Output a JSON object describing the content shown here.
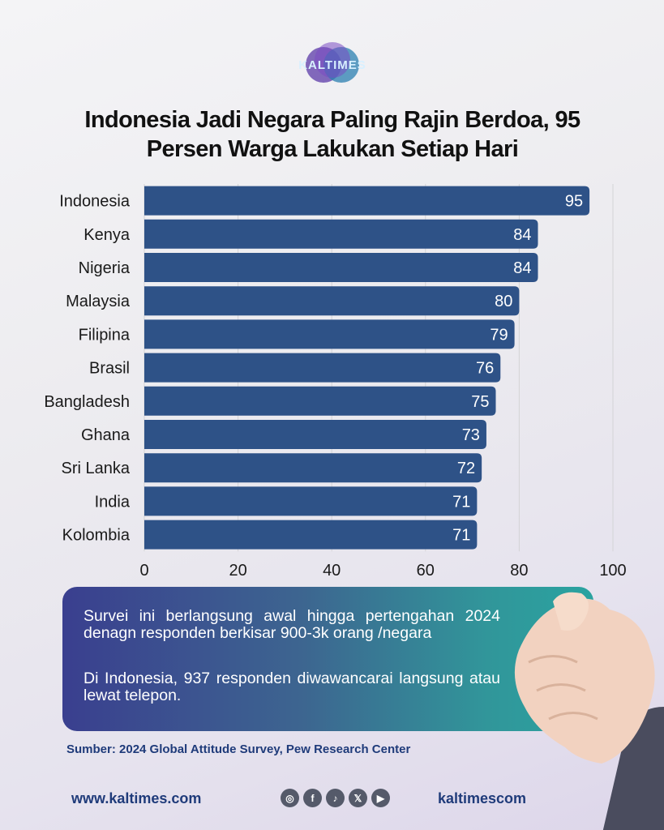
{
  "brand": {
    "logo_text": "KALTIMES"
  },
  "title_line1": "Indonesia Jadi Negara Paling Rajin Berdoa, 95",
  "title_line2": "Persen Warga Lakukan Setiap Hari",
  "chart_data": {
    "type": "bar",
    "orientation": "horizontal",
    "categories": [
      "Indonesia",
      "Kenya",
      "Nigeria",
      "Malaysia",
      "Filipina",
      "Brasil",
      "Bangladesh",
      "Ghana",
      "Sri Lanka",
      "India",
      "Kolombia"
    ],
    "values": [
      95,
      84,
      84,
      80,
      79,
      76,
      75,
      73,
      72,
      71,
      71
    ],
    "xlim": [
      0,
      100
    ],
    "xticks": [
      "0",
      "20",
      "40",
      "60",
      "80",
      "100"
    ],
    "grid": true,
    "bar_color": "#2e5287",
    "label_color": "#ffffff"
  },
  "note": {
    "paragraph1": "Survei ini berlangsung awal hingga pertengahan 2024 denagn responden berkisar 900-3k orang /negara",
    "paragraph2": "Di Indonesia, 937 responden diwawancarai langsung atau lewat telepon."
  },
  "source": "Sumber: 2024 Global Attitude Survey, Pew Research Center",
  "footer": {
    "website": "www.kaltimes.com",
    "handle": "kaltimescom",
    "social_icons": [
      "instagram-icon",
      "facebook-icon",
      "tiktok-icon",
      "x-icon",
      "youtube-icon"
    ]
  }
}
